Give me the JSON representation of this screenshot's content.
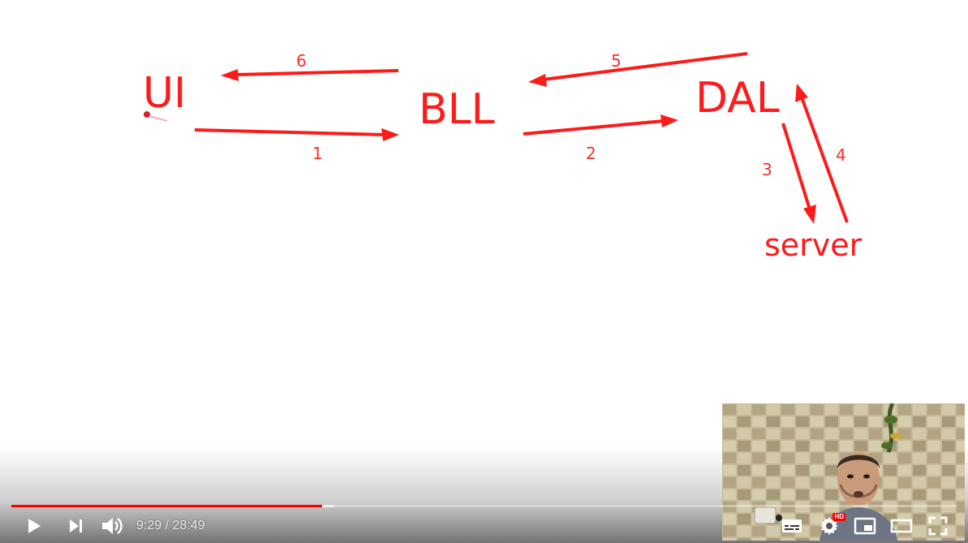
{
  "diagram": {
    "nodes": {
      "ui": "UI",
      "bll": "BLL",
      "dal": "DAL",
      "server": "server"
    },
    "steps": [
      "1",
      "2",
      "3",
      "4",
      "5",
      "6"
    ]
  },
  "player": {
    "current_time": "9:29",
    "separator": " / ",
    "duration": "28:49",
    "progress_fraction": 0.329,
    "buffered_fraction": 0.341,
    "hd_badge": "HD",
    "accent_color": "#ff0000"
  }
}
